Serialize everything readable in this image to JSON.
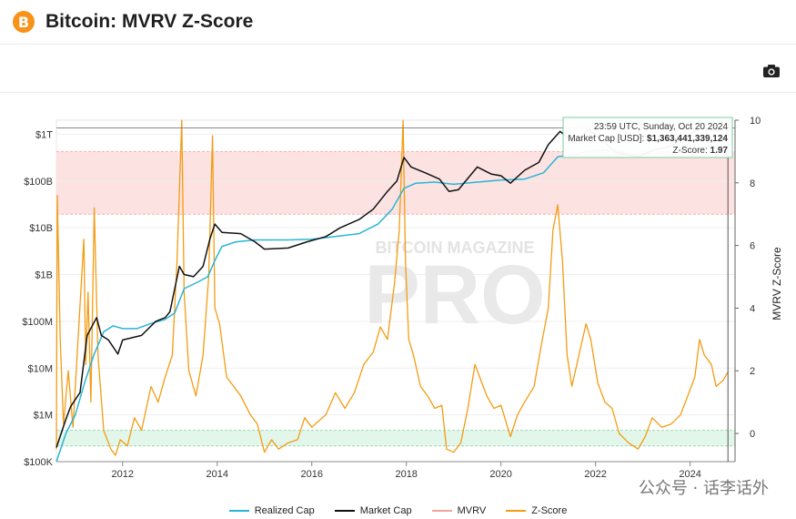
{
  "header": {
    "title": "Bitcoin: MVRV Z-Score",
    "logo_glyph": "B"
  },
  "toolbar": {
    "camera_icon": "camera-icon"
  },
  "tooltip": {
    "time": "23:59 UTC, Sunday, Oct 20 2024",
    "market_cap_label": "Market Cap [USD]:",
    "market_cap_value": "$1,363,441,339,124",
    "zscore_label": "Z-Score:",
    "zscore_value": "1.97"
  },
  "watermark": {
    "brand": "BITCOIN MAGAZINE",
    "pro": "PRO",
    "social": "公众号 · 话李话外"
  },
  "colors": {
    "realized": "#2bb4d6",
    "market": "#111111",
    "mvrv": "#f2a49c",
    "zscore": "#f39c12",
    "red_band": "#fde2e2",
    "green_band": "#e2f6ea"
  },
  "chart_data": {
    "type": "line",
    "title": "Bitcoin: MVRV Z-Score",
    "xlabel": "",
    "ylabel_left": "",
    "ylabel_right": "MVRV Z-Score",
    "x_ticks": [
      "2012",
      "2014",
      "2016",
      "2018",
      "2020",
      "2022",
      "2024"
    ],
    "y_left_ticks": [
      "$100K",
      "$1M",
      "$10M",
      "$100M",
      "$1B",
      "$10B",
      "$100B",
      "$1T"
    ],
    "y_left_scale": "log",
    "y_left_range": [
      100000,
      2000000000000
    ],
    "y_right_ticks": [
      "0",
      "2",
      "4",
      "6",
      "8",
      "10"
    ],
    "y_right_range": [
      -0.9,
      10
    ],
    "x_range": [
      2010.6,
      2024.95
    ],
    "bands": [
      {
        "name": "red zone",
        "axis": "right",
        "from": 7.0,
        "to": 9.0
      },
      {
        "name": "green zone",
        "axis": "right",
        "from": -0.4,
        "to": 0.1
      }
    ],
    "series": [
      {
        "name": "Realized Cap",
        "axis": "left",
        "points": [
          [
            2010.6,
            100000
          ],
          [
            2010.8,
            400000
          ],
          [
            2011.0,
            1000000
          ],
          [
            2011.2,
            5000000
          ],
          [
            2011.4,
            20000000
          ],
          [
            2011.6,
            60000000
          ],
          [
            2011.8,
            80000000
          ],
          [
            2012.0,
            70000000
          ],
          [
            2012.3,
            70000000
          ],
          [
            2012.6,
            90000000
          ],
          [
            2012.9,
            110000000
          ],
          [
            2013.1,
            150000000
          ],
          [
            2013.3,
            500000000
          ],
          [
            2013.6,
            700000000
          ],
          [
            2013.8,
            900000000
          ],
          [
            2013.95,
            2000000000
          ],
          [
            2014.1,
            4000000000
          ],
          [
            2014.4,
            5000000000
          ],
          [
            2014.8,
            5500000000
          ],
          [
            2015.0,
            5500000000
          ],
          [
            2015.5,
            5500000000
          ],
          [
            2016.0,
            5700000000
          ],
          [
            2016.5,
            6500000000
          ],
          [
            2017.0,
            7500000000
          ],
          [
            2017.4,
            12000000000
          ],
          [
            2017.7,
            25000000000
          ],
          [
            2017.95,
            70000000000
          ],
          [
            2018.2,
            90000000000
          ],
          [
            2018.6,
            95000000000
          ],
          [
            2019.0,
            85000000000
          ],
          [
            2019.5,
            95000000000
          ],
          [
            2020.0,
            105000000000
          ],
          [
            2020.5,
            110000000000
          ],
          [
            2020.9,
            150000000000
          ],
          [
            2021.2,
            330000000000
          ],
          [
            2021.6,
            380000000000
          ],
          [
            2021.9,
            450000000000
          ],
          [
            2022.3,
            450000000000
          ],
          [
            2022.8,
            380000000000
          ],
          [
            2023.2,
            390000000000
          ],
          [
            2023.6,
            400000000000
          ],
          [
            2024.0,
            430000000000
          ],
          [
            2024.3,
            520000000000
          ],
          [
            2024.6,
            560000000000
          ],
          [
            2024.8,
            580000000000
          ]
        ]
      },
      {
        "name": "Market Cap",
        "axis": "left",
        "points": [
          [
            2010.6,
            200000
          ],
          [
            2010.8,
            800000
          ],
          [
            2010.9,
            1500000
          ],
          [
            2011.1,
            3000000
          ],
          [
            2011.25,
            50000000
          ],
          [
            2011.45,
            120000000
          ],
          [
            2011.55,
            50000000
          ],
          [
            2011.7,
            40000000
          ],
          [
            2011.9,
            20000000
          ],
          [
            2012.0,
            40000000
          ],
          [
            2012.4,
            50000000
          ],
          [
            2012.7,
            100000000
          ],
          [
            2012.9,
            120000000
          ],
          [
            2013.0,
            160000000
          ],
          [
            2013.2,
            1500000000
          ],
          [
            2013.3,
            1000000000
          ],
          [
            2013.5,
            900000000
          ],
          [
            2013.7,
            1500000000
          ],
          [
            2013.85,
            6000000000
          ],
          [
            2013.95,
            12000000000
          ],
          [
            2014.1,
            8000000000
          ],
          [
            2014.5,
            7500000000
          ],
          [
            2014.8,
            5000000000
          ],
          [
            2015.0,
            3500000000
          ],
          [
            2015.5,
            3700000000
          ],
          [
            2015.9,
            5000000000
          ],
          [
            2016.3,
            6500000000
          ],
          [
            2016.6,
            10000000000
          ],
          [
            2017.0,
            15000000000
          ],
          [
            2017.3,
            25000000000
          ],
          [
            2017.6,
            60000000000
          ],
          [
            2017.8,
            100000000000
          ],
          [
            2017.95,
            320000000000
          ],
          [
            2018.1,
            200000000000
          ],
          [
            2018.4,
            150000000000
          ],
          [
            2018.7,
            110000000000
          ],
          [
            2018.9,
            60000000000
          ],
          [
            2019.1,
            65000000000
          ],
          [
            2019.5,
            200000000000
          ],
          [
            2019.8,
            140000000000
          ],
          [
            2020.0,
            130000000000
          ],
          [
            2020.2,
            90000000000
          ],
          [
            2020.5,
            170000000000
          ],
          [
            2020.8,
            250000000000
          ],
          [
            2021.0,
            600000000000
          ],
          [
            2021.25,
            1150000000000
          ],
          [
            2021.55,
            650000000000
          ],
          [
            2021.85,
            1250000000000
          ],
          [
            2022.1,
            800000000000
          ],
          [
            2022.45,
            400000000000
          ],
          [
            2022.9,
            330000000000
          ],
          [
            2023.2,
            450000000000
          ],
          [
            2023.6,
            560000000000
          ],
          [
            2023.9,
            850000000000
          ],
          [
            2024.2,
            1350000000000
          ],
          [
            2024.6,
            1200000000000
          ],
          [
            2024.8,
            1363441339124
          ]
        ]
      },
      {
        "name": "MVRV",
        "axis": "right",
        "points": []
      },
      {
        "name": "Z-Score",
        "axis": "right",
        "points": [
          [
            2010.6,
            -0.5
          ],
          [
            2010.62,
            7.6
          ],
          [
            2010.68,
            3.0
          ],
          [
            2010.75,
            0.3
          ],
          [
            2010.85,
            2.0
          ],
          [
            2010.95,
            0.2
          ],
          [
            2011.05,
            2.8
          ],
          [
            2011.18,
            6.2
          ],
          [
            2011.22,
            2.2
          ],
          [
            2011.27,
            4.5
          ],
          [
            2011.33,
            1.0
          ],
          [
            2011.4,
            7.2
          ],
          [
            2011.48,
            2.5
          ],
          [
            2011.6,
            0.1
          ],
          [
            2011.75,
            -0.5
          ],
          [
            2011.85,
            -0.7
          ],
          [
            2011.95,
            -0.2
          ],
          [
            2012.1,
            -0.4
          ],
          [
            2012.25,
            0.5
          ],
          [
            2012.4,
            0.1
          ],
          [
            2012.6,
            1.5
          ],
          [
            2012.75,
            1.0
          ],
          [
            2012.9,
            1.8
          ],
          [
            2013.05,
            2.5
          ],
          [
            2013.15,
            5.5
          ],
          [
            2013.25,
            10.0
          ],
          [
            2013.3,
            4.5
          ],
          [
            2013.4,
            2.0
          ],
          [
            2013.55,
            1.2
          ],
          [
            2013.7,
            2.5
          ],
          [
            2013.82,
            5.0
          ],
          [
            2013.9,
            9.5
          ],
          [
            2013.95,
            4.0
          ],
          [
            2014.05,
            3.5
          ],
          [
            2014.2,
            1.8
          ],
          [
            2014.35,
            1.5
          ],
          [
            2014.5,
            1.2
          ],
          [
            2014.7,
            0.6
          ],
          [
            2014.85,
            0.3
          ],
          [
            2015.0,
            -0.6
          ],
          [
            2015.15,
            -0.2
          ],
          [
            2015.3,
            -0.5
          ],
          [
            2015.5,
            -0.3
          ],
          [
            2015.7,
            -0.2
          ],
          [
            2015.85,
            0.5
          ],
          [
            2016.0,
            0.2
          ],
          [
            2016.3,
            0.6
          ],
          [
            2016.5,
            1.3
          ],
          [
            2016.7,
            0.8
          ],
          [
            2016.9,
            1.3
          ],
          [
            2017.1,
            2.2
          ],
          [
            2017.3,
            2.6
          ],
          [
            2017.45,
            3.4
          ],
          [
            2017.6,
            3.0
          ],
          [
            2017.75,
            4.8
          ],
          [
            2017.85,
            6.5
          ],
          [
            2017.93,
            10.0
          ],
          [
            2017.98,
            5.5
          ],
          [
            2018.05,
            3.0
          ],
          [
            2018.15,
            2.5
          ],
          [
            2018.3,
            1.5
          ],
          [
            2018.45,
            1.2
          ],
          [
            2018.6,
            0.8
          ],
          [
            2018.75,
            0.9
          ],
          [
            2018.85,
            -0.5
          ],
          [
            2019.0,
            -0.6
          ],
          [
            2019.15,
            -0.3
          ],
          [
            2019.3,
            0.8
          ],
          [
            2019.45,
            2.2
          ],
          [
            2019.55,
            1.8
          ],
          [
            2019.7,
            1.2
          ],
          [
            2019.85,
            0.8
          ],
          [
            2020.0,
            0.9
          ],
          [
            2020.2,
            -0.1
          ],
          [
            2020.35,
            0.6
          ],
          [
            2020.5,
            1.0
          ],
          [
            2020.7,
            1.5
          ],
          [
            2020.85,
            2.8
          ],
          [
            2021.0,
            4.0
          ],
          [
            2021.1,
            6.5
          ],
          [
            2021.2,
            7.3
          ],
          [
            2021.3,
            5.5
          ],
          [
            2021.4,
            2.5
          ],
          [
            2021.5,
            1.5
          ],
          [
            2021.65,
            2.5
          ],
          [
            2021.8,
            3.5
          ],
          [
            2021.9,
            3.0
          ],
          [
            2022.05,
            1.6
          ],
          [
            2022.2,
            1.0
          ],
          [
            2022.35,
            0.8
          ],
          [
            2022.5,
            0.0
          ],
          [
            2022.7,
            -0.3
          ],
          [
            2022.9,
            -0.5
          ],
          [
            2023.05,
            -0.1
          ],
          [
            2023.2,
            0.5
          ],
          [
            2023.4,
            0.2
          ],
          [
            2023.6,
            0.3
          ],
          [
            2023.8,
            0.6
          ],
          [
            2023.95,
            1.2
          ],
          [
            2024.1,
            1.8
          ],
          [
            2024.2,
            3.0
          ],
          [
            2024.3,
            2.5
          ],
          [
            2024.45,
            2.2
          ],
          [
            2024.55,
            1.5
          ],
          [
            2024.7,
            1.7
          ],
          [
            2024.8,
            1.97
          ]
        ]
      }
    ],
    "legend": [
      "Realized Cap",
      "Market Cap",
      "MVRV",
      "Z-Score"
    ],
    "legend_position": "bottom",
    "grid": true
  }
}
